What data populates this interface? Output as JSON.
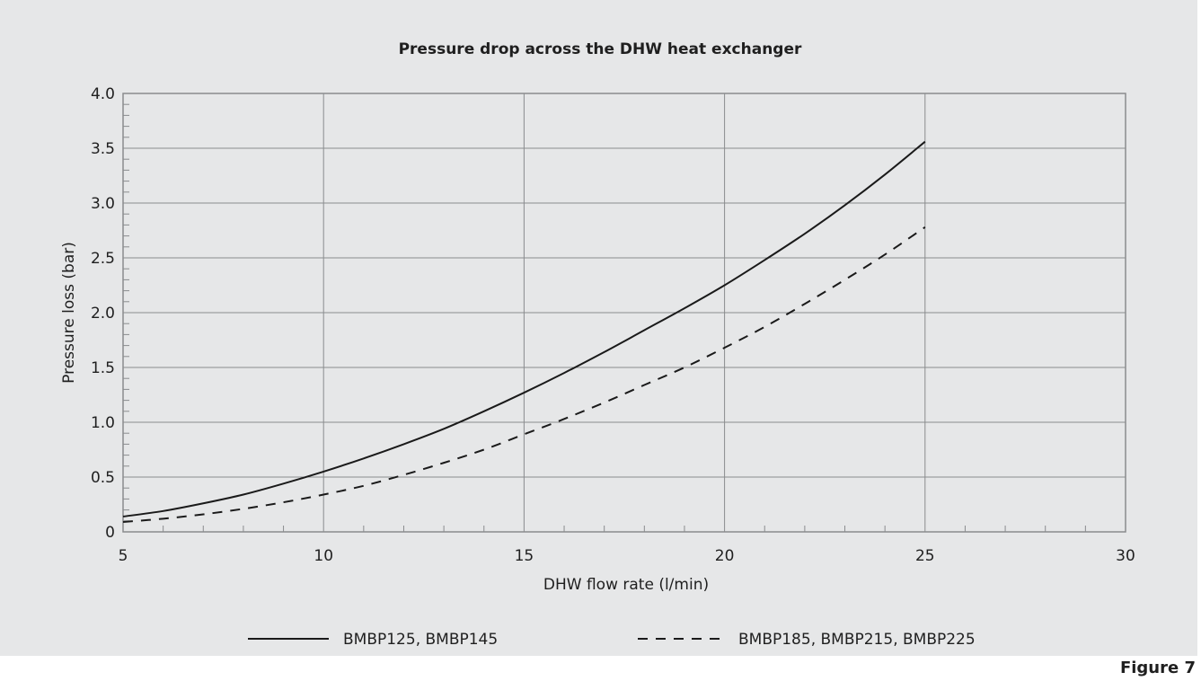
{
  "chart_data": {
    "type": "line",
    "title": "Pressure drop across the DHW heat exchanger",
    "xlabel": "DHW flow rate (l/min)",
    "ylabel": "Pressure loss (bar)",
    "xlim": [
      5,
      30
    ],
    "ylim": [
      0,
      4.0
    ],
    "xticks": [
      "5",
      "10",
      "15",
      "20",
      "25",
      "30"
    ],
    "yticks": [
      "0",
      "0.5",
      "1.0",
      "1.5",
      "2.0",
      "2.5",
      "3.0",
      "3.5",
      "4.0"
    ],
    "grid": true,
    "legend_position": "bottom",
    "series": [
      {
        "name": "BMBP125, BMBP145",
        "line_style": "solid",
        "color": "#1a1a1a",
        "x": [
          5,
          6,
          7,
          8,
          9,
          10,
          11,
          12,
          13,
          14,
          15,
          16,
          17,
          18,
          19,
          20,
          21,
          22,
          23,
          24,
          25
        ],
        "y": [
          0.14,
          0.19,
          0.26,
          0.34,
          0.44,
          0.55,
          0.67,
          0.8,
          0.94,
          1.1,
          1.27,
          1.45,
          1.64,
          1.84,
          2.04,
          2.25,
          2.48,
          2.72,
          2.98,
          3.26,
          3.56
        ]
      },
      {
        "name": "BMBP185, BMBP215, BMBP225",
        "line_style": "dashed",
        "color": "#1a1a1a",
        "x": [
          5,
          6,
          7,
          8,
          9,
          10,
          11,
          12,
          13,
          14,
          15,
          16,
          17,
          18,
          19,
          20,
          21,
          22,
          23,
          24,
          25
        ],
        "y": [
          0.09,
          0.12,
          0.16,
          0.21,
          0.27,
          0.34,
          0.42,
          0.52,
          0.63,
          0.75,
          0.89,
          1.03,
          1.18,
          1.34,
          1.5,
          1.68,
          1.87,
          2.08,
          2.3,
          2.53,
          2.78
        ]
      }
    ]
  },
  "figure_label": "Figure 7",
  "colors": {
    "panel_background": "#e6e7e8",
    "plot_background": "#e6e7e8",
    "grid": "#8a8c8e",
    "axis": "#8a8c8e",
    "text": "#1f1f1f",
    "line": "#1a1a1a"
  }
}
